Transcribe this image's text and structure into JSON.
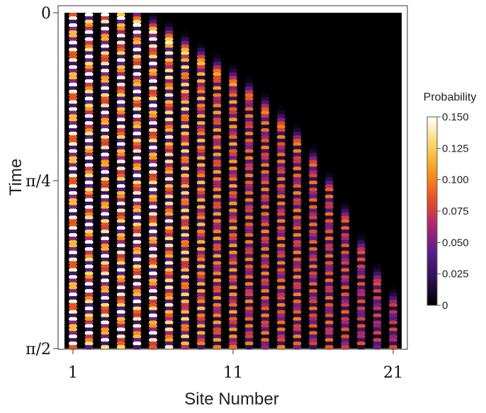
{
  "chart_data": {
    "type": "heatmap",
    "xlabel": "Site Number",
    "ylabel": "Time",
    "x_ticks": [
      {
        "label": "1",
        "value": 1
      },
      {
        "label": "11",
        "value": 11
      },
      {
        "label": "21",
        "value": 21
      }
    ],
    "y_ticks": [
      {
        "label": "0",
        "value": 0
      },
      {
        "label": "π/4",
        "value": 0.7854
      },
      {
        "label": "π/2",
        "value": 1.5708
      }
    ],
    "xlim": [
      0.5,
      21.5
    ],
    "ylim": [
      0,
      1.5708
    ],
    "y_axis_inverted": true,
    "sites": [
      1,
      2,
      3,
      4,
      5,
      6,
      7,
      8,
      9,
      10,
      11,
      12,
      13,
      14,
      15,
      16,
      17,
      18,
      19,
      20,
      21
    ],
    "oscillation_periods_per_half_pi": 20,
    "peak_probability_by_site": [
      0.16,
      0.16,
      0.15,
      0.15,
      0.15,
      0.15,
      0.14,
      0.13,
      0.12,
      0.11,
      0.11,
      0.1,
      0.1,
      0.1,
      0.1,
      0.095,
      0.095,
      0.09,
      0.085,
      0.08,
      0.08
    ],
    "front_arrival_time_by_site": [
      0,
      0,
      0.01,
      0.03,
      0.06,
      0.1,
      0.14,
      0.19,
      0.24,
      0.29,
      0.34,
      0.4,
      0.47,
      0.54,
      0.62,
      0.72,
      0.84,
      0.98,
      1.13,
      1.27,
      1.38
    ],
    "colorbar": {
      "title": "Probability",
      "min": 0,
      "max": 0.15,
      "ticks": [
        "0.150",
        "0.125",
        "0.100",
        "0.075",
        "0.050",
        "0.025",
        "0"
      ],
      "colormap": [
        "#000000",
        "#2d1152",
        "#5a1f8a",
        "#b0286e",
        "#e8541f",
        "#f79a1c",
        "#fcd66a",
        "#ffffff"
      ]
    }
  }
}
